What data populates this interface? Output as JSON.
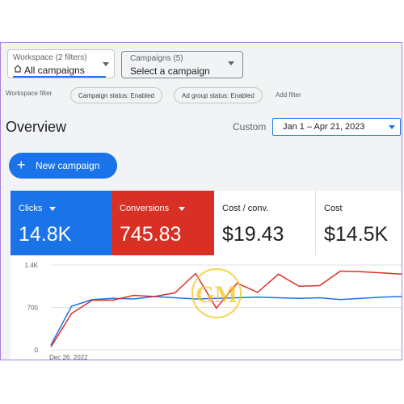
{
  "workspace": {
    "label": "Workspace (2 filters)",
    "value": "All campaigns"
  },
  "campaigns": {
    "label": "Campaigns (5)",
    "value": "Select a campaign"
  },
  "filters": {
    "label": "Workspace filter",
    "chips": [
      "Campaign status: Enabled",
      "Ad group status: Enabled"
    ],
    "add": "Add filter"
  },
  "overview": {
    "title": "Overview",
    "range_label": "Custom",
    "date_range": "Jan 1 – Apr 21, 2023"
  },
  "new_campaign": {
    "label": "New campaign"
  },
  "metrics": [
    {
      "name": "Clicks",
      "value": "14.8K",
      "color": "#1a73e8"
    },
    {
      "name": "Conversions",
      "value": "745.83",
      "color": "#d93025"
    },
    {
      "name": "Cost / conv.",
      "value": "$19.43"
    },
    {
      "name": "Cost",
      "value": "$14.5K"
    }
  ],
  "chart_data": {
    "type": "line",
    "yticks": [
      "1.4K",
      "700",
      "0"
    ],
    "ylim": [
      0,
      1400
    ],
    "xlabel_first": "Dec 26, 2022",
    "grid": true,
    "series": [
      {
        "name": "Clicks",
        "color": "#1a73e8",
        "values": [
          80,
          720,
          830,
          850,
          840,
          880,
          860,
          840,
          850,
          860,
          870,
          860,
          850,
          860,
          830,
          850,
          870,
          880
        ]
      },
      {
        "name": "Conversions",
        "color": "#d93025",
        "values": [
          50,
          600,
          820,
          820,
          900,
          880,
          940,
          1260,
          690,
          1100,
          950,
          1250,
          1050,
          1060,
          1300,
          1290,
          1270,
          1250
        ]
      }
    ]
  },
  "watermark": "GM"
}
